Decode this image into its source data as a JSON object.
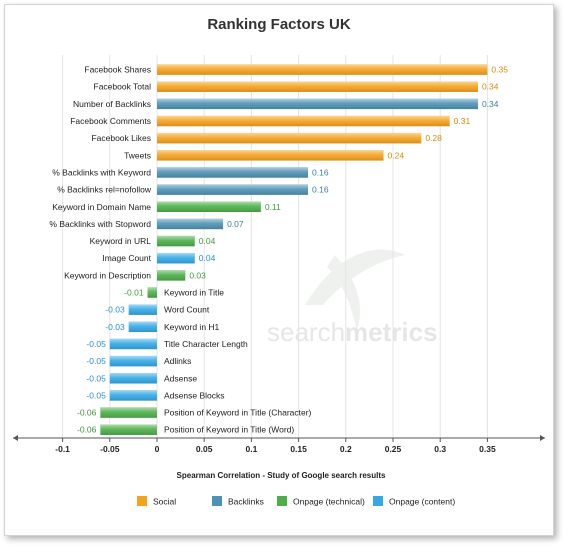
{
  "chart_data": {
    "type": "bar",
    "orientation": "horizontal",
    "title": "Ranking Factors UK",
    "xlabel": "Spearman Correlation - Study of Google search results",
    "xlim": [
      -0.1,
      0.35
    ],
    "xticks": [
      "-0.1",
      "-0.05",
      "0",
      "0.05",
      "0.1",
      "0.15",
      "0.2",
      "0.25",
      "0.3",
      "0.35"
    ],
    "grid": true,
    "legend_position": "bottom",
    "watermark": {
      "prefix": "search",
      "suffix": "metrics"
    },
    "series_colors": {
      "Social": "#f5a21d",
      "Backlinks": "#4f93b4",
      "Onpage (technical)": "#4daf4a",
      "Onpage (content)": "#34a9e6"
    },
    "value_label_colors": {
      "Social": "#d88a10",
      "Backlinks": "#3c7fa2",
      "Onpage (technical)": "#3f9a3c",
      "Onpage (content)": "#2a8fc9"
    },
    "legend": [
      "Social",
      "Backlinks",
      "Onpage (technical)",
      "Onpage (content)"
    ],
    "bars": [
      {
        "category": "Facebook Shares",
        "value": 0.35,
        "label": "0.35",
        "group": "Social"
      },
      {
        "category": "Facebook Total",
        "value": 0.34,
        "label": "0.34",
        "group": "Social"
      },
      {
        "category": "Number of Backlinks",
        "value": 0.34,
        "label": "0.34",
        "group": "Backlinks"
      },
      {
        "category": "Facebook Comments",
        "value": 0.31,
        "label": "0.31",
        "group": "Social"
      },
      {
        "category": "Facebook Likes",
        "value": 0.28,
        "label": "0.28",
        "group": "Social"
      },
      {
        "category": "Tweets",
        "value": 0.24,
        "label": "0.24",
        "group": "Social"
      },
      {
        "category": "% Backlinks with Keyword",
        "value": 0.16,
        "label": "0.16",
        "group": "Backlinks"
      },
      {
        "category": "% Backlinks rel=nofollow",
        "value": 0.16,
        "label": "0.16",
        "group": "Backlinks"
      },
      {
        "category": "Keyword in Domain Name",
        "value": 0.11,
        "label": "0.11",
        "group": "Onpage (technical)"
      },
      {
        "category": "% Backlinks with Stopword",
        "value": 0.07,
        "label": "0.07",
        "group": "Backlinks"
      },
      {
        "category": "Keyword in URL",
        "value": 0.04,
        "label": "0.04",
        "group": "Onpage (technical)"
      },
      {
        "category": "Image Count",
        "value": 0.04,
        "label": "0.04",
        "group": "Onpage (content)"
      },
      {
        "category": "Keyword in Description",
        "value": 0.03,
        "label": "0.03",
        "group": "Onpage (technical)"
      },
      {
        "category": "Keyword in Title",
        "value": -0.01,
        "label": "-0.01",
        "group": "Onpage (technical)"
      },
      {
        "category": "Word Count",
        "value": -0.03,
        "label": "-0.03",
        "group": "Onpage (content)"
      },
      {
        "category": "Keyword in H1",
        "value": -0.03,
        "label": "-0.03",
        "group": "Onpage (content)"
      },
      {
        "category": "Title Character Length",
        "value": -0.05,
        "label": "-0.05",
        "group": "Onpage (content)"
      },
      {
        "category": "Adlinks",
        "value": -0.05,
        "label": "-0.05",
        "group": "Onpage (content)"
      },
      {
        "category": "Adsense",
        "value": -0.05,
        "label": "-0.05",
        "group": "Onpage (content)"
      },
      {
        "category": "Adsense Blocks",
        "value": -0.05,
        "label": "-0.05",
        "group": "Onpage (content)"
      },
      {
        "category": "Position of Keyword in Title (Character)",
        "value": -0.06,
        "label": "-0.06",
        "group": "Onpage (technical)"
      },
      {
        "category": "Position of Keyword in Title (Word)",
        "value": -0.06,
        "label": "-0.06",
        "group": "Onpage (technical)"
      }
    ]
  }
}
